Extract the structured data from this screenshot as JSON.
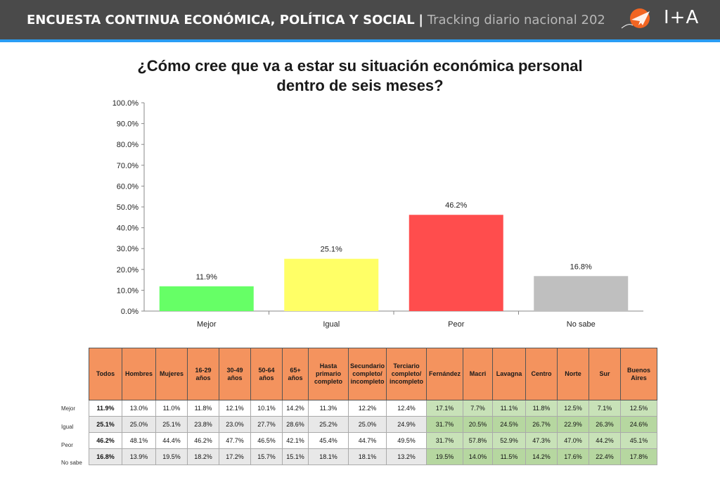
{
  "header": {
    "title": "ENCUESTA CONTINUA ECONÓMICA, POLÍTICA Y SOCIAL",
    "separator": "|",
    "subtitle": "Tracking diario nacional 202",
    "logo_text": "I+A"
  },
  "chart_data": {
    "type": "bar",
    "title": "¿Cómo cree que va a estar su situación económica personal dentro de seis meses?",
    "title_lines": [
      "¿Cómo cree que va a estar su situación económica personal",
      "dentro de seis meses?"
    ],
    "categories": [
      "Mejor",
      "Igual",
      "Peor",
      "No sabe"
    ],
    "values": [
      11.9,
      25.1,
      46.2,
      16.8
    ],
    "value_labels": [
      "11.9%",
      "25.1%",
      "46.2%",
      "16.8%"
    ],
    "colors": [
      "#66ff66",
      "#ffff66",
      "#ff4d4d",
      "#bfbfbf"
    ],
    "ylim": [
      0,
      100
    ],
    "yticks": [
      "0.0%",
      "10.0%",
      "20.0%",
      "30.0%",
      "40.0%",
      "50.0%",
      "60.0%",
      "70.0%",
      "80.0%",
      "90.0%",
      "100.0%"
    ],
    "grid": false,
    "legend": "none",
    "xlabel": "",
    "ylabel": ""
  },
  "table": {
    "columns": [
      "Todos",
      "Hombres",
      "Mujeres",
      "16-29 años",
      "30-49 años",
      "50-64 años",
      "65+ años",
      "Hasta primario completo",
      "Secundario completo/ incompleto",
      "Terciario completo/ incompleto",
      "Fernández",
      "Macri",
      "Lavagna",
      "Centro",
      "Norte",
      "Sur",
      "Buenos Aires"
    ],
    "rows": [
      {
        "label": "Mejor",
        "values": [
          "11.9%",
          "13.0%",
          "11.0%",
          "11.8%",
          "12.1%",
          "10.1%",
          "14.2%",
          "11.3%",
          "12.2%",
          "12.4%",
          "17.1%",
          "7.7%",
          "11.1%",
          "11.8%",
          "12.5%",
          "7.1%",
          "12.5%"
        ]
      },
      {
        "label": "Igual",
        "values": [
          "25.1%",
          "25.0%",
          "25.1%",
          "23.8%",
          "23.0%",
          "27.7%",
          "28.6%",
          "25.2%",
          "25.0%",
          "24.9%",
          "31.7%",
          "20.5%",
          "24.5%",
          "26.7%",
          "22.9%",
          "26.3%",
          "24.6%"
        ]
      },
      {
        "label": "Peor",
        "values": [
          "46.2%",
          "48.1%",
          "44.4%",
          "46.2%",
          "47.7%",
          "46.5%",
          "42.1%",
          "45.4%",
          "44.7%",
          "49.5%",
          "31.7%",
          "57.8%",
          "52.9%",
          "47.3%",
          "47.0%",
          "44.2%",
          "45.1%"
        ]
      },
      {
        "label": "No sabe",
        "values": [
          "16.8%",
          "13.9%",
          "19.5%",
          "18.2%",
          "17.2%",
          "15.7%",
          "15.1%",
          "18.1%",
          "18.1%",
          "13.2%",
          "19.5%",
          "14.0%",
          "11.5%",
          "14.2%",
          "17.6%",
          "22.4%",
          "17.8%"
        ]
      }
    ]
  }
}
